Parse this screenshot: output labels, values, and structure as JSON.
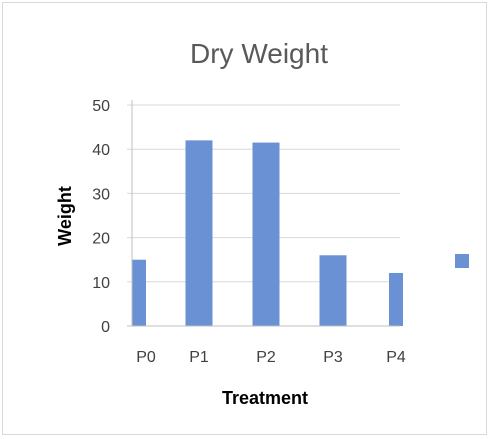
{
  "chart_data": {
    "type": "bar",
    "title": "Dry Weight",
    "xlabel": "Treatment",
    "ylabel": "Weight",
    "categories": [
      "P0",
      "P1",
      "P2",
      "P3",
      "P4"
    ],
    "series": [
      {
        "values": [
          15,
          42,
          41.5,
          16,
          12
        ]
      }
    ],
    "ylim": [
      0,
      50
    ],
    "yticks": [
      0,
      10,
      20,
      30,
      40,
      50
    ],
    "grid": true,
    "legend": "right",
    "colors": {
      "bar": "#6a91d3",
      "grid": "#d9d9d9",
      "axis": "#bfbfbf"
    }
  }
}
